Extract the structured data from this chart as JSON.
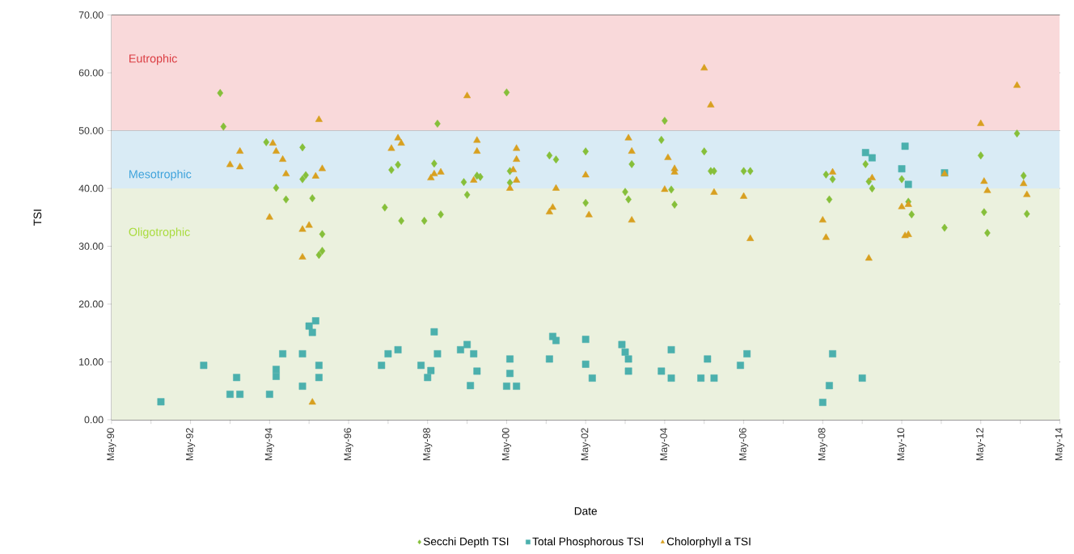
{
  "chart_data": {
    "type": "scatter",
    "xlabel": "Date",
    "ylabel": "TSI",
    "xlim": [
      "1990-05",
      "2014-05"
    ],
    "ylim": [
      0,
      70
    ],
    "xticks": [
      {
        "value": "1990-05",
        "label": "May-90"
      },
      {
        "value": "1991-05",
        "label": null
      },
      {
        "value": "1992-05",
        "label": "May-92"
      },
      {
        "value": "1993-05",
        "label": null
      },
      {
        "value": "1994-05",
        "label": "May-94"
      },
      {
        "value": "1995-05",
        "label": null
      },
      {
        "value": "1996-05",
        "label": "May-96"
      },
      {
        "value": "1997-05",
        "label": null
      },
      {
        "value": "1998-05",
        "label": "May-98"
      },
      {
        "value": "1999-05",
        "label": null
      },
      {
        "value": "2000-05",
        "label": "May-00"
      },
      {
        "value": "2001-05",
        "label": null
      },
      {
        "value": "2002-05",
        "label": "May-02"
      },
      {
        "value": "2003-05",
        "label": null
      },
      {
        "value": "2004-05",
        "label": "May-04"
      },
      {
        "value": "2005-05",
        "label": null
      },
      {
        "value": "2006-05",
        "label": "May-06"
      },
      {
        "value": "2007-05",
        "label": null
      },
      {
        "value": "2008-05",
        "label": "May-08"
      },
      {
        "value": "2009-05",
        "label": null
      },
      {
        "value": "2010-05",
        "label": "May-10"
      },
      {
        "value": "2011-05",
        "label": null
      },
      {
        "value": "2012-05",
        "label": "May-12"
      },
      {
        "value": "2013-05",
        "label": null
      },
      {
        "value": "2014-05",
        "label": "May-14"
      }
    ],
    "yticks": [
      {
        "value": 0,
        "label": "0.00"
      },
      {
        "value": 10,
        "label": "10.00"
      },
      {
        "value": 20,
        "label": "20.00"
      },
      {
        "value": 30,
        "label": "30.00"
      },
      {
        "value": 40,
        "label": "40.00"
      },
      {
        "value": 50,
        "label": "50.00"
      },
      {
        "value": 60,
        "label": "60.00"
      },
      {
        "value": 70,
        "label": "70.00"
      }
    ],
    "grid": "y",
    "legend": "bottom",
    "bands": [
      {
        "axis": "y",
        "from": 50,
        "to": 70,
        "label": "Eutrophic",
        "color": "#f9d9da"
      },
      {
        "axis": "y",
        "from": 40,
        "to": 50,
        "label": "Mesotrophic",
        "color": "#d9ebf5"
      },
      {
        "axis": "y",
        "from": 0,
        "to": 40,
        "label": "Oligotrophic",
        "color": "#ebf1de"
      }
    ],
    "series": [
      {
        "name": "Secchi Depth TSI",
        "color": "#86bf3a",
        "marker": "diamond",
        "x": [
          "1993-02",
          "1993-03",
          "1994-04",
          "1994-07",
          "1994-10",
          "1995-03",
          "1995-04",
          "1995-03",
          "1995-06",
          "1995-09",
          "1995-08",
          "1995-09",
          "1997-04",
          "1997-06",
          "1997-08",
          "1997-09",
          "1998-04",
          "1998-08",
          "1998-07",
          "1998-09",
          "1999-04",
          "1999-05",
          "1999-08",
          "1999-09",
          "2000-05",
          "2000-06",
          "2000-06",
          "2001-06",
          "2001-08",
          "2002-05",
          "2002-05",
          "2003-07",
          "2003-05",
          "2003-06",
          "2004-04",
          "2004-05",
          "2004-07",
          "2004-08",
          "2005-05",
          "2005-07",
          "2005-08",
          "2006-05",
          "2006-07",
          "2008-06",
          "2008-07",
          "2008-08",
          "2009-06",
          "2009-07",
          "2009-08",
          "2010-05",
          "2010-07",
          "2010-08",
          "2011-06",
          "2012-05",
          "2012-06",
          "2012-07",
          "2013-04",
          "2013-06",
          "2013-07"
        ],
        "values": [
          56.5,
          50.7,
          48.0,
          40.1,
          38.1,
          47.1,
          42.3,
          41.6,
          38.3,
          32.1,
          28.5,
          29.2,
          36.7,
          43.2,
          44.1,
          34.4,
          34.4,
          51.2,
          44.3,
          35.5,
          41.1,
          38.9,
          42.2,
          42.0,
          56.6,
          43.0,
          41.0,
          45.7,
          45.0,
          46.4,
          37.5,
          44.2,
          39.4,
          38.1,
          48.4,
          51.7,
          39.8,
          37.2,
          46.4,
          43.0,
          43.0,
          43.0,
          43.0,
          42.4,
          38.1,
          41.6,
          44.2,
          41.2,
          40.0,
          41.6,
          37.7,
          35.5,
          33.2,
          45.7,
          35.9,
          32.3,
          49.5,
          42.2,
          35.6
        ]
      },
      {
        "name": "Total Phosphorous TSI",
        "color": "#4bb0ad",
        "marker": "square",
        "x": [
          "1991-08",
          "1992-09",
          "1993-05",
          "1993-07",
          "1993-08",
          "1994-05",
          "1994-07",
          "1994-07",
          "1994-09",
          "1995-03",
          "1995-03",
          "1995-05",
          "1995-06",
          "1995-07",
          "1995-08",
          "1995-08",
          "1997-03",
          "1997-05",
          "1997-08",
          "1998-03",
          "1998-05",
          "1998-06",
          "1998-07",
          "1998-08",
          "1999-03",
          "1999-05",
          "1999-06",
          "1999-07",
          "1999-08",
          "2000-05",
          "2000-06",
          "2000-06",
          "2000-08",
          "2001-06",
          "2001-07",
          "2001-08",
          "2002-05",
          "2002-05",
          "2002-07",
          "2003-04",
          "2003-05",
          "2003-06",
          "2003-06",
          "2004-04",
          "2004-07",
          "2004-07",
          "2005-04",
          "2005-06",
          "2005-08",
          "2006-04",
          "2006-06",
          "2008-05",
          "2008-07",
          "2008-08",
          "2009-05",
          "2009-06",
          "2009-08",
          "2010-05",
          "2010-06",
          "2010-07",
          "2011-06"
        ],
        "values": [
          3.1,
          9.4,
          4.4,
          7.3,
          4.4,
          4.4,
          8.7,
          7.5,
          11.4,
          5.8,
          11.4,
          16.2,
          15.1,
          17.1,
          9.4,
          7.3,
          9.4,
          11.4,
          12.1,
          9.4,
          7.3,
          8.5,
          15.2,
          11.4,
          12.1,
          13.0,
          5.9,
          11.4,
          8.4,
          5.8,
          10.5,
          8.0,
          5.8,
          10.5,
          14.4,
          13.7,
          13.9,
          9.6,
          7.2,
          13.0,
          11.7,
          10.5,
          8.4,
          8.4,
          12.1,
          7.2,
          7.2,
          10.5,
          7.2,
          9.4,
          11.4,
          3.0,
          5.9,
          11.4,
          7.2,
          46.2,
          45.3,
          43.4,
          47.3,
          40.7,
          42.7
        ]
      },
      {
        "name": "Cholorphyll a TSI",
        "color": "#d8a020",
        "marker": "triangle",
        "x": [
          "1993-08",
          "1993-05",
          "1993-08",
          "1994-06",
          "1994-07",
          "1994-09",
          "1994-10",
          "1994-05",
          "1995-08",
          "1995-09",
          "1995-07",
          "1995-03",
          "1995-05",
          "1995-03",
          "1995-06",
          "1997-08",
          "1997-06",
          "1997-09",
          "1999-05",
          "1999-08",
          "1999-08",
          "1998-06",
          "1998-09",
          "1998-07",
          "1999-07",
          "2000-08",
          "2000-08",
          "2000-07",
          "2000-06",
          "2000-08",
          "2001-08",
          "2001-07",
          "2001-06",
          "2002-05",
          "2002-06",
          "2003-06",
          "2003-07",
          "2003-07",
          "2004-06",
          "2004-08",
          "2004-08",
          "2004-05",
          "2005-05",
          "2005-07",
          "2005-08",
          "2006-05",
          "2006-07",
          "2008-05",
          "2008-06",
          "2008-08",
          "2009-07",
          "2009-08",
          "2010-05",
          "2010-07",
          "2010-07",
          "2010-06",
          "2011-06",
          "2012-05",
          "2012-06",
          "2012-07",
          "2013-04",
          "2013-06",
          "2013-07"
        ],
        "values": [
          46.4,
          44.1,
          43.7,
          47.8,
          46.4,
          45.0,
          42.5,
          35.0,
          51.9,
          43.4,
          42.1,
          32.9,
          33.6,
          28.1,
          3.0,
          48.7,
          46.9,
          47.8,
          56.0,
          48.3,
          46.4,
          41.8,
          42.8,
          42.5,
          41.4,
          46.9,
          45.0,
          43.2,
          40.0,
          41.4,
          40.0,
          36.7,
          35.9,
          42.3,
          35.4,
          48.7,
          46.4,
          34.5,
          45.3,
          42.8,
          43.4,
          39.8,
          60.8,
          54.4,
          39.3,
          38.6,
          31.3,
          34.5,
          31.5,
          42.8,
          27.9,
          41.8,
          36.8,
          37.2,
          32.0,
          31.8,
          42.5,
          51.2,
          41.2,
          39.6,
          57.8,
          40.8,
          38.9
        ]
      }
    ]
  }
}
